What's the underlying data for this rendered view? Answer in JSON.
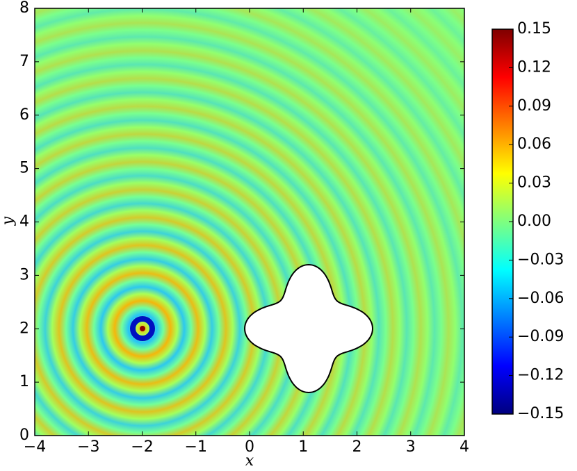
{
  "chart_data": {
    "type": "heatmap",
    "xlabel": "x",
    "ylabel": "y",
    "xlim": [
      -4,
      4
    ],
    "ylim": [
      0,
      8
    ],
    "xticks": [
      {
        "value": -4,
        "label": "−4"
      },
      {
        "value": -3,
        "label": "−3"
      },
      {
        "value": -2,
        "label": "−2"
      },
      {
        "value": -1,
        "label": "−1"
      },
      0,
      1,
      2,
      3,
      4
    ],
    "yticks": [
      0,
      1,
      2,
      3,
      4,
      5,
      6,
      7,
      8
    ],
    "colormap": "jet",
    "clim": [
      -0.15,
      0.15
    ],
    "cticks": [
      {
        "value": -0.15,
        "label": "−0.15"
      },
      {
        "value": -0.12,
        "label": "−0.12"
      },
      {
        "value": -0.09,
        "label": "−0.09"
      },
      {
        "value": -0.06,
        "label": "−0.06"
      },
      {
        "value": -0.03,
        "label": "−0.03"
      },
      {
        "value": 0,
        "label": "0.00"
      },
      0.03,
      0.06,
      0.09,
      0.12,
      0.15
    ]
  }
}
